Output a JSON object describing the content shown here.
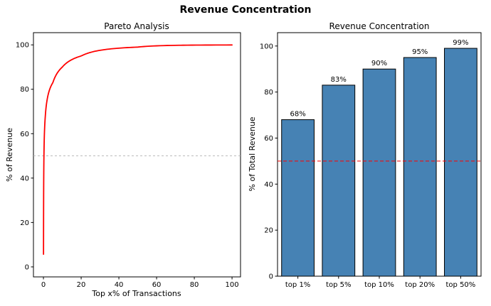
{
  "figure": {
    "suptitle": "Revenue Concentration",
    "background_color": "#ffffff"
  },
  "chart_data": [
    {
      "type": "line",
      "title": "Pareto Analysis",
      "xlabel": "Top x% of Transactions",
      "ylabel": "% of Revenue",
      "xlim": [
        -5.3,
        104.5
      ],
      "ylim": [
        -4.5,
        105.5
      ],
      "xticks": [
        0,
        20,
        40,
        60,
        80,
        100
      ],
      "yticks": [
        0,
        20,
        40,
        60,
        80,
        100
      ],
      "grid": false,
      "line_color": "#ff0000",
      "points": [
        [
          0.04,
          5.7
        ],
        [
          0.1,
          31
        ],
        [
          0.3,
          52
        ],
        [
          1,
          68
        ],
        [
          2,
          75.5
        ],
        [
          5,
          83
        ],
        [
          10,
          90
        ],
        [
          20,
          95
        ],
        [
          50,
          99
        ],
        [
          100,
          100
        ]
      ],
      "reference_line": {
        "y": 50,
        "color": "#b3b3b3",
        "style": "dashed"
      }
    },
    {
      "type": "bar",
      "title": "Revenue Concentration",
      "xlabel": "",
      "ylabel": "% of Total Revenue",
      "categories": [
        "top 1%",
        "top 5%",
        "top 10%",
        "top 20%",
        "top 50%"
      ],
      "values": [
        68,
        83,
        90,
        95,
        99
      ],
      "bar_labels": [
        "68%",
        "83%",
        "90%",
        "95%",
        "99%"
      ],
      "ylim": [
        0,
        105.8
      ],
      "yticks": [
        0,
        20,
        40,
        60,
        80,
        100
      ],
      "grid": false,
      "bar_color": "#4682b4",
      "bar_edge_color": "#000000",
      "reference_line": {
        "y": 50,
        "color": "#ff0000",
        "style": "dashed"
      }
    }
  ]
}
